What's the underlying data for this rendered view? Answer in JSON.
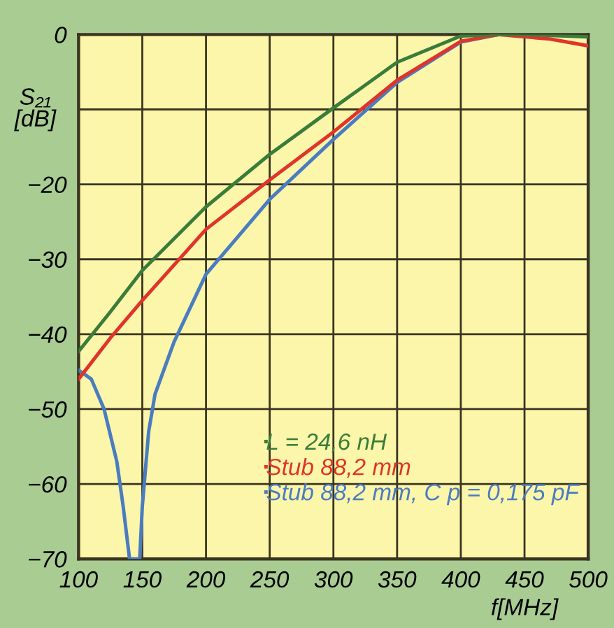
{
  "chart_data": {
    "type": "line",
    "xlabel": "f[MHz]",
    "ylabel": "S₂₁\n[dB]",
    "xlim": [
      100,
      500
    ],
    "xticks": [
      100,
      150,
      200,
      250,
      300,
      350,
      400,
      450,
      500
    ],
    "ylim": [
      -70,
      0
    ],
    "yticks": [
      -70,
      -60,
      -50,
      -40,
      -30,
      -20,
      {
        "value": -10,
        "label": null
      },
      0
    ],
    "grid": true,
    "legend": "bottom right",
    "series": [
      {
        "name": "L = 24,6 nH",
        "color": "#3a7d3a",
        "x": [
          100,
          125,
          150,
          200,
          250,
          300,
          350,
          400,
          430,
          450,
          500
        ],
        "values": [
          -42.3,
          -37,
          -31.5,
          -23,
          -16,
          -9.8,
          -3.7,
          -0.2,
          0,
          0,
          -0.3
        ]
      },
      {
        "name": "Stub 88,2 mm",
        "color": "#e0342a",
        "x": [
          100,
          125,
          150,
          200,
          250,
          300,
          350,
          400,
          430,
          470,
          500
        ],
        "values": [
          -46,
          -40.5,
          -35.5,
          -26,
          -19.4,
          -13,
          -6.1,
          -0.9,
          0,
          -0.6,
          -1.5
        ]
      },
      {
        "name": "Stub 88,2 mm, C p = 0,175 pF",
        "color": "#4a7cc0",
        "x": [
          100,
          110,
          120,
          130,
          135,
          140,
          148,
          150,
          155,
          160,
          175,
          200,
          250,
          300,
          350,
          400,
          430
        ],
        "values": [
          -44.8,
          -46,
          -50,
          -57,
          -63,
          -70,
          -70,
          -63,
          -53,
          -48,
          -41,
          -32,
          -22,
          -14,
          -6.4,
          -1,
          0
        ]
      }
    ]
  }
}
